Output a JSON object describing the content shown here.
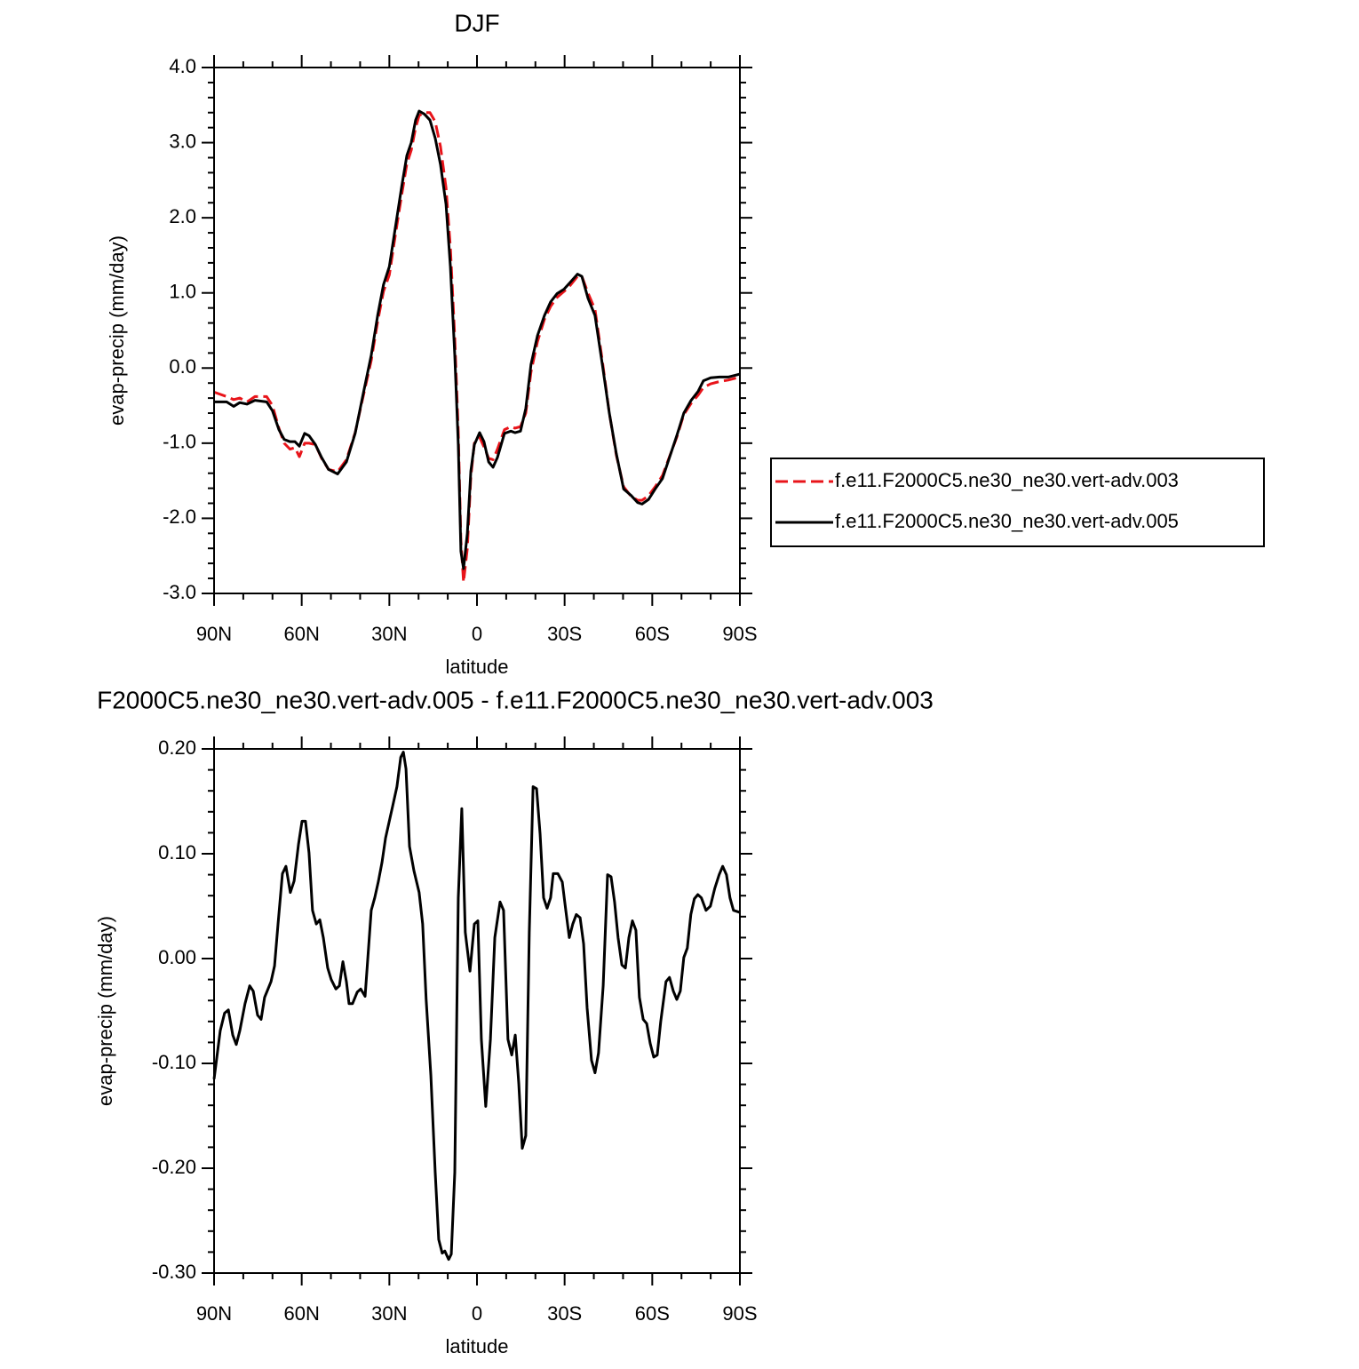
{
  "chart_data": [
    {
      "type": "line",
      "title": "DJF",
      "x_label": "latitude",
      "y_label": "evap-precip (mm/day)",
      "xlim": [
        90,
        -90
      ],
      "xticks": [
        {
          "value": 90,
          "label": "90N"
        },
        {
          "value": 60,
          "label": "60N"
        },
        {
          "value": 30,
          "label": "30N"
        },
        0,
        {
          "value": -30,
          "label": "30S"
        },
        {
          "value": -60,
          "label": "60S"
        },
        {
          "value": -90,
          "label": "90S"
        }
      ],
      "ylim": [
        -3,
        4
      ],
      "yticks": [
        {
          "value": 4,
          "label": "4.0"
        },
        {
          "value": 3,
          "label": "3.0"
        },
        {
          "value": 2,
          "label": "2.0"
        },
        {
          "value": 1,
          "label": "1.0"
        },
        {
          "value": 0,
          "label": "0.0"
        },
        {
          "value": -1,
          "label": "-1.0"
        },
        {
          "value": -2,
          "label": "-2.0"
        },
        {
          "value": -3,
          "label": "-3.0"
        }
      ],
      "legend": "right",
      "x": [
        90,
        85.7,
        83.3,
        81.2,
        78.7,
        76,
        72,
        70,
        67.8,
        66,
        64,
        62.3,
        60.8,
        59,
        57.5,
        55.3,
        53.2,
        50.8,
        47.7,
        44.7,
        41.7,
        39.2,
        36.2,
        34,
        32,
        30,
        27.9,
        25.8,
        24,
        22.5,
        21,
        19.8,
        18,
        16.1,
        14.3,
        12.5,
        10.6,
        9.1,
        7.6,
        6.4,
        5.5,
        4.6,
        3.3,
        2.1,
        0.9,
        -0.9,
        -2.4,
        -4,
        -5.5,
        -7,
        -9.4,
        -11.6,
        -13,
        -14.9,
        -16.7,
        -18.5,
        -20.7,
        -23.1,
        -25.2,
        -27.4,
        -29.8,
        -31.9,
        -34.4,
        -35.9,
        -38,
        -40.4,
        -42.9,
        -45.3,
        -47.7,
        -50.2,
        -52.6,
        -55,
        -56.5,
        -58.7,
        -61,
        -63.5,
        -65.9,
        -68.4,
        -70.8,
        -73.3,
        -75.7,
        -77.5,
        -80,
        -83,
        -86,
        -90
      ],
      "series": [
        {
          "name": "f.e11.F2000C5.ne30_ne30.vert-adv.003",
          "color": "#e8141a",
          "dash": "dashed",
          "values": [
            -0.32,
            -0.38,
            -0.42,
            -0.4,
            -0.45,
            -0.38,
            -0.38,
            -0.5,
            -0.8,
            -1.0,
            -1.08,
            -1.06,
            -1.18,
            -1.0,
            -1.0,
            -1.02,
            -1.2,
            -1.35,
            -1.38,
            -1.22,
            -0.86,
            -0.42,
            0.1,
            0.62,
            1.02,
            1.24,
            1.78,
            2.3,
            2.72,
            2.9,
            3.2,
            3.36,
            3.4,
            3.4,
            3.28,
            2.95,
            2.4,
            1.6,
            0.4,
            -0.85,
            -2.3,
            -2.85,
            -2.4,
            -1.45,
            -1.0,
            -0.92,
            -1.05,
            -1.2,
            -1.22,
            -1.08,
            -0.82,
            -0.78,
            -0.8,
            -0.78,
            -0.6,
            -0.05,
            0.35,
            0.65,
            0.82,
            0.94,
            1.02,
            1.1,
            1.22,
            1.22,
            1.0,
            0.78,
            0.1,
            -0.6,
            -1.16,
            -1.58,
            -1.7,
            -1.76,
            -1.76,
            -1.7,
            -1.58,
            -1.43,
            -1.18,
            -0.92,
            -0.62,
            -0.47,
            -0.36,
            -0.26,
            -0.21,
            -0.18,
            -0.16,
            -0.12
          ]
        },
        {
          "name": "f.e11.F2000C5.ne30_ne30.vert-adv.005",
          "color": "#000000",
          "dash": "solid",
          "values": [
            -0.45,
            -0.45,
            -0.51,
            -0.46,
            -0.48,
            -0.43,
            -0.45,
            -0.57,
            -0.82,
            -0.95,
            -0.98,
            -0.98,
            -1.04,
            -0.87,
            -0.9,
            -1.02,
            -1.19,
            -1.35,
            -1.41,
            -1.25,
            -0.87,
            -0.39,
            0.17,
            0.7,
            1.11,
            1.35,
            1.88,
            2.41,
            2.83,
            3.0,
            3.3,
            3.42,
            3.38,
            3.3,
            3.06,
            2.71,
            2.18,
            1.35,
            0.17,
            -1.02,
            -2.44,
            -2.67,
            -2.2,
            -1.37,
            -1.02,
            -0.86,
            -0.98,
            -1.25,
            -1.32,
            -1.19,
            -0.87,
            -0.84,
            -0.86,
            -0.84,
            -0.54,
            0.05,
            0.43,
            0.7,
            0.88,
            0.99,
            1.05,
            1.14,
            1.25,
            1.22,
            0.93,
            0.7,
            0.05,
            -0.6,
            -1.14,
            -1.61,
            -1.69,
            -1.79,
            -1.81,
            -1.75,
            -1.61,
            -1.47,
            -1.19,
            -0.9,
            -0.6,
            -0.43,
            -0.31,
            -0.17,
            -0.13,
            -0.12,
            -0.12,
            -0.08
          ]
        }
      ]
    },
    {
      "type": "line",
      "title": "F2000C5.ne30_ne30.vert-adv.005 - f.e11.F2000C5.ne30_ne30.vert-adv.003",
      "x_label": "latitude",
      "y_label": "evap-precip (mm/day)",
      "xlim": [
        90,
        -90
      ],
      "xticks": [
        {
          "value": 90,
          "label": "90N"
        },
        {
          "value": 60,
          "label": "60N"
        },
        {
          "value": 30,
          "label": "30N"
        },
        0,
        {
          "value": -30,
          "label": "30S"
        },
        {
          "value": -60,
          "label": "60S"
        },
        {
          "value": -90,
          "label": "90S"
        }
      ],
      "ylim": [
        -0.3,
        0.2
      ],
      "yticks": [
        {
          "value": 0.2,
          "label": "0.20"
        },
        {
          "value": 0.1,
          "label": "0.10"
        },
        {
          "value": 0,
          "label": "0.00"
        },
        {
          "value": -0.1,
          "label": "-0.10"
        },
        {
          "value": -0.2,
          "label": "-0.20"
        },
        {
          "value": -0.3,
          "label": "-0.30"
        }
      ],
      "x": [
        90,
        87.9,
        86.4,
        85.1,
        83.6,
        82.4,
        81.2,
        79.4,
        77.8,
        76.6,
        75.1,
        73.9,
        72.7,
        70.5,
        69.3,
        68.1,
        66.6,
        65.4,
        63.9,
        62.6,
        61.1,
        59.9,
        58.7,
        57.5,
        56.3,
        55,
        53.8,
        52.6,
        51.1,
        49.9,
        48.3,
        47.1,
        45.9,
        44.7,
        43.8,
        42.6,
        41,
        39.8,
        38.3,
        36.2,
        35,
        33.8,
        32.5,
        31.3,
        30.1,
        28.9,
        27.4,
        26.1,
        25.2,
        24.3,
        23.1,
        21.6,
        19.8,
        18.6,
        17.4,
        15.8,
        14.3,
        13.1,
        11.9,
        11,
        9.7,
        8.8,
        7.6,
        6.4,
        5.2,
        4,
        2.4,
        0.9,
        -0.3,
        -1.5,
        -3,
        -4.6,
        -6.1,
        -7.9,
        -9.1,
        -10.6,
        -11.9,
        -13.1,
        -14.3,
        -15.5,
        -16.7,
        -17.9,
        -19.2,
        -20.4,
        -21.6,
        -22.8,
        -24,
        -25.2,
        -26.1,
        -27.7,
        -29.2,
        -30.4,
        -31.6,
        -32.8,
        -34,
        -35.3,
        -36.5,
        -37.7,
        -39.2,
        -40.4,
        -41.6,
        -43.2,
        -44.7,
        -45.9,
        -47.1,
        -48.3,
        -49.6,
        -50.8,
        -52,
        -53.2,
        -54.4,
        -55.6,
        -56.9,
        -58.1,
        -59.3,
        -60.5,
        -61.7,
        -62.9,
        -64.7,
        -65.9,
        -67.2,
        -68.4,
        -69.6,
        -70.8,
        -72,
        -73.2,
        -74.4,
        -75.6,
        -76.8,
        -78.4,
        -79.9,
        -81.4,
        -82.9,
        -84.1,
        -85.4,
        -86.6,
        -87.8,
        -90
      ],
      "series": [
        {
          "color": "#000000",
          "dash": "solid",
          "values": [
            -0.115,
            -0.069,
            -0.052,
            -0.049,
            -0.073,
            -0.082,
            -0.069,
            -0.043,
            -0.026,
            -0.031,
            -0.054,
            -0.058,
            -0.037,
            -0.022,
            -0.007,
            0.033,
            0.081,
            0.088,
            0.063,
            0.074,
            0.109,
            0.131,
            0.131,
            0.101,
            0.046,
            0.033,
            0.037,
            0.02,
            -0.009,
            -0.02,
            -0.029,
            -0.026,
            -0.003,
            -0.022,
            -0.043,
            -0.043,
            -0.032,
            -0.029,
            -0.036,
            0.046,
            0.058,
            0.073,
            0.092,
            0.115,
            0.13,
            0.145,
            0.164,
            0.192,
            0.197,
            0.181,
            0.107,
            0.084,
            0.063,
            0.033,
            -0.039,
            -0.111,
            -0.204,
            -0.268,
            -0.281,
            -0.279,
            -0.287,
            -0.282,
            -0.204,
            0.058,
            0.143,
            0.025,
            -0.012,
            0.033,
            0.036,
            -0.077,
            -0.141,
            -0.077,
            0.02,
            0.054,
            0.046,
            -0.077,
            -0.092,
            -0.073,
            -0.119,
            -0.181,
            -0.169,
            0.025,
            0.164,
            0.162,
            0.119,
            0.058,
            0.048,
            0.058,
            0.081,
            0.081,
            0.073,
            0.046,
            0.02,
            0.033,
            0.042,
            0.039,
            0.014,
            -0.047,
            -0.097,
            -0.109,
            -0.09,
            -0.026,
            0.08,
            0.078,
            0.054,
            0.02,
            -0.006,
            -0.009,
            0.02,
            0.036,
            0.027,
            -0.037,
            -0.058,
            -0.062,
            -0.081,
            -0.094,
            -0.092,
            -0.06,
            -0.022,
            -0.018,
            -0.031,
            -0.039,
            -0.031,
            0.001,
            0.01,
            0.042,
            0.057,
            0.061,
            0.058,
            0.046,
            0.05,
            0.067,
            0.08,
            0.088,
            0.08,
            0.058,
            0.046,
            0.044
          ]
        }
      ]
    }
  ]
}
